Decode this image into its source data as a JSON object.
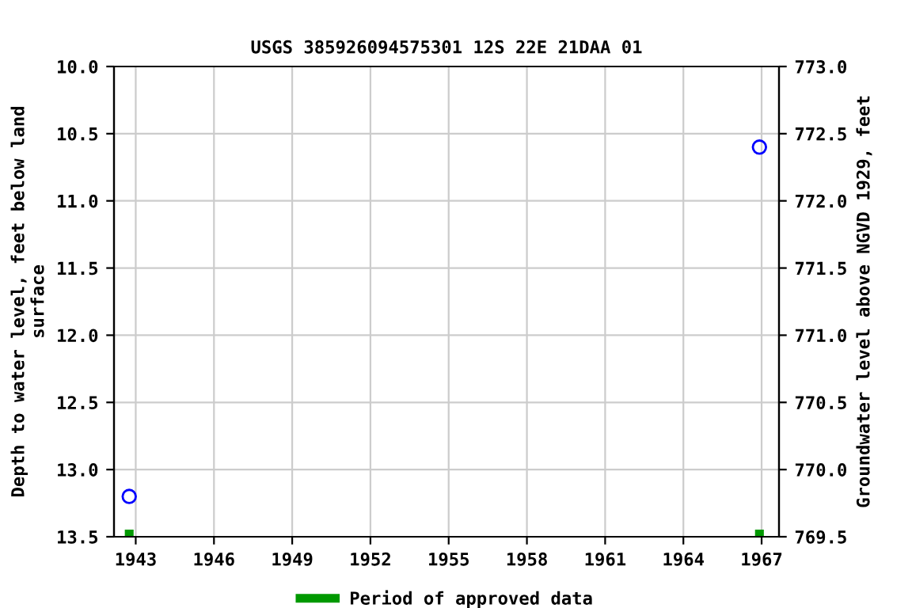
{
  "chart_data": {
    "type": "scatter",
    "title": "USGS 385926094575301 12S 22E 21DAA 01",
    "ylabel": "Depth to water level, feet below land\nsurface",
    "y2label": "Groundwater level above NGVD 1929, feet",
    "series": [
      {
        "type": "scatter",
        "marker": "circle",
        "color": "#0000ff",
        "x": [
          "1942-10",
          "1966-12"
        ],
        "values": [
          13.2,
          10.6
        ]
      },
      {
        "type": "scatter",
        "marker": "square",
        "name": "Period of approved data",
        "color": "#009900",
        "x": [
          "1942-10",
          "1966-12"
        ],
        "values": [
          13.48,
          13.48
        ]
      }
    ],
    "xlim": [
      "1942-03",
      "1967-09"
    ],
    "xticks": [
      {
        "value": "1943",
        "label": "1943"
      },
      {
        "value": "1946",
        "label": "1946"
      },
      {
        "value": "1949",
        "label": "1949"
      },
      {
        "value": "1952",
        "label": "1952"
      },
      {
        "value": "1955",
        "label": "1955"
      },
      {
        "value": "1958",
        "label": "1958"
      },
      {
        "value": "1961",
        "label": "1961"
      },
      {
        "value": "1964",
        "label": "1964"
      },
      {
        "value": "1967",
        "label": "1967"
      }
    ],
    "ylim": [
      13.5,
      10.0
    ],
    "yticks": [
      {
        "value": 10.0,
        "label": "10.0"
      },
      {
        "value": 10.5,
        "label": "10.5"
      },
      {
        "value": 11.0,
        "label": "11.0"
      },
      {
        "value": 11.5,
        "label": "11.5"
      },
      {
        "value": 12.0,
        "label": "12.0"
      },
      {
        "value": 12.5,
        "label": "12.5"
      },
      {
        "value": 13.0,
        "label": "13.0"
      },
      {
        "value": 13.5,
        "label": "13.5"
      }
    ],
    "y2lim": [
      769.5,
      773.0
    ],
    "y2ticks": [
      {
        "value": 773.0,
        "label": "773.0"
      },
      {
        "value": 772.5,
        "label": "772.5"
      },
      {
        "value": 772.0,
        "label": "772.0"
      },
      {
        "value": 771.5,
        "label": "771.5"
      },
      {
        "value": 771.0,
        "label": "771.0"
      },
      {
        "value": 770.5,
        "label": "770.5"
      },
      {
        "value": 770.0,
        "label": "770.0"
      },
      {
        "value": 769.5,
        "label": "769.5"
      }
    ],
    "grid": true,
    "legend": "bottom"
  }
}
